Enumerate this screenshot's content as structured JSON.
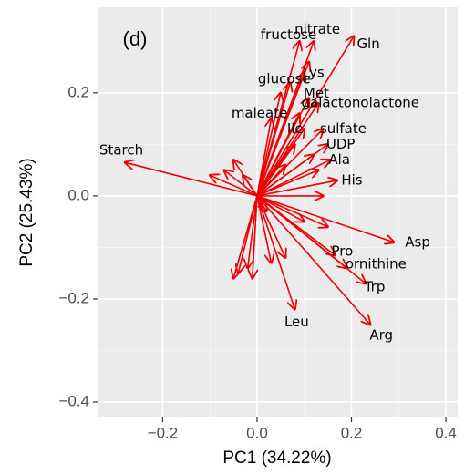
{
  "chart_data": {
    "type": "biplot",
    "annotation": "(d)",
    "x_label": "PC1 (34.22%)",
    "y_label": "PC2 (25.43%)",
    "color": "#ee0000",
    "grid": true,
    "xlim": [
      -0.338,
      0.425
    ],
    "ylim": [
      -0.43,
      0.366
    ],
    "xticks": [
      {
        "value": -0.2,
        "label": "−0.2"
      },
      {
        "value": 0,
        "label": "0.0"
      },
      0.2,
      0.4
    ],
    "yticks": [
      {
        "value": -0.4,
        "label": "−0.4"
      },
      {
        "value": -0.2,
        "label": "−0.2"
      },
      {
        "value": 0,
        "label": "0.0"
      },
      0.2
    ],
    "labels": [
      "Starch",
      "fructose",
      "nitrate",
      "Gln",
      "Lys",
      "glucose",
      "Met",
      "galactonolactone",
      "maleate",
      "Ile",
      "sulfate",
      "UDP",
      "Ala",
      "His",
      "Asp",
      "Pro",
      "ornithine",
      "Trp",
      "Arg",
      "Leu",
      null,
      null,
      null,
      null,
      null,
      null,
      null,
      null,
      null,
      null,
      null,
      null,
      null,
      null,
      null,
      null,
      null,
      null,
      null,
      null,
      null
    ],
    "x": [
      -0.28,
      0.09,
      0.12,
      0.205,
      0.11,
      0.1,
      0.11,
      0.13,
      0.09,
      0.1,
      0.14,
      0.15,
      0.155,
      0.17,
      0.29,
      0.165,
      0.19,
      0.23,
      0.24,
      0.08,
      -0.07,
      -0.1,
      -0.05,
      -0.04,
      -0.05,
      -0.02,
      -0.01,
      0.03,
      0.06,
      0.02,
      0.06,
      0.08,
      0.12,
      0.13,
      0.1,
      0.15,
      0.05,
      0.07,
      -0.03,
      0.14,
      0.03
    ],
    "y": [
      0.065,
      0.3,
      0.3,
      0.31,
      0.26,
      0.24,
      0.19,
      0.18,
      0.16,
      0.13,
      0.13,
      0.1,
      0.07,
      0.03,
      -0.09,
      -0.115,
      -0.14,
      -0.17,
      -0.25,
      -0.22,
      0.05,
      0.04,
      0.07,
      -0.15,
      -0.16,
      -0.14,
      -0.16,
      -0.13,
      -0.12,
      -0.03,
      0.06,
      0.1,
      0.08,
      0.05,
      -0.05,
      -0.06,
      0.2,
      0.22,
      0.04,
      0,
      0.15
    ]
  }
}
